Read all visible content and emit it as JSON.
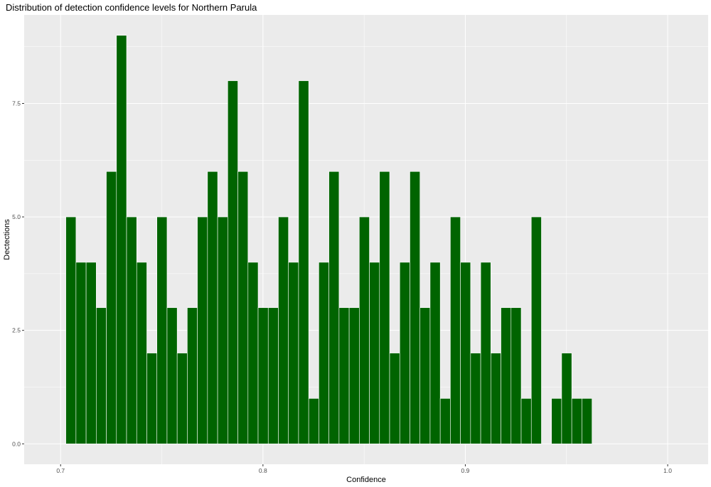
{
  "chart_data": {
    "type": "bar",
    "title": "Distribution of detection confidence levels for Northern Parula",
    "xlabel": "Confidence",
    "ylabel": "Dectections",
    "xlim": [
      0.682,
      1.02
    ],
    "ylim": [
      -0.45,
      9.45
    ],
    "x_ticks": [
      0.7,
      0.8,
      0.9,
      1.0
    ],
    "x_tick_labels": [
      "0.7",
      "0.8",
      "0.9",
      "1.0"
    ],
    "y_ticks": [
      0,
      2.5,
      5,
      7.5
    ],
    "y_tick_labels": [
      "0.0",
      "2.5",
      "5.0",
      "7.5"
    ],
    "bin_width": 0.005,
    "bar_color": "#006400",
    "bar_outline": "#ffffff",
    "panel_background": "#ebebeb",
    "grid": true,
    "bins": [
      0.7051,
      0.7101,
      0.7151,
      0.7201,
      0.7251,
      0.7301,
      0.7351,
      0.7401,
      0.7451,
      0.7501,
      0.7551,
      0.7601,
      0.7651,
      0.7701,
      0.7751,
      0.7801,
      0.7851,
      0.7901,
      0.7951,
      0.8001,
      0.8051,
      0.8101,
      0.8151,
      0.8201,
      0.8251,
      0.8301,
      0.8351,
      0.8401,
      0.8451,
      0.8501,
      0.8551,
      0.8601,
      0.8651,
      0.8701,
      0.8751,
      0.8801,
      0.8851,
      0.8901,
      0.8951,
      0.9001,
      0.9051,
      0.9101,
      0.9151,
      0.9201,
      0.9251,
      0.9301,
      0.9351,
      0.9401,
      0.9451,
      0.9501,
      0.9551,
      0.9601
    ],
    "values": [
      5,
      4,
      4,
      3,
      6,
      9,
      5,
      4,
      2,
      5,
      3,
      2,
      3,
      5,
      6,
      5,
      8,
      6,
      4,
      3,
      3,
      5,
      4,
      8,
      1,
      4,
      6,
      3,
      3,
      5,
      4,
      6,
      2,
      4,
      6,
      3,
      4,
      1,
      5,
      4,
      2,
      4,
      2,
      3,
      3,
      1,
      5,
      0,
      1,
      2,
      1,
      1
    ]
  }
}
